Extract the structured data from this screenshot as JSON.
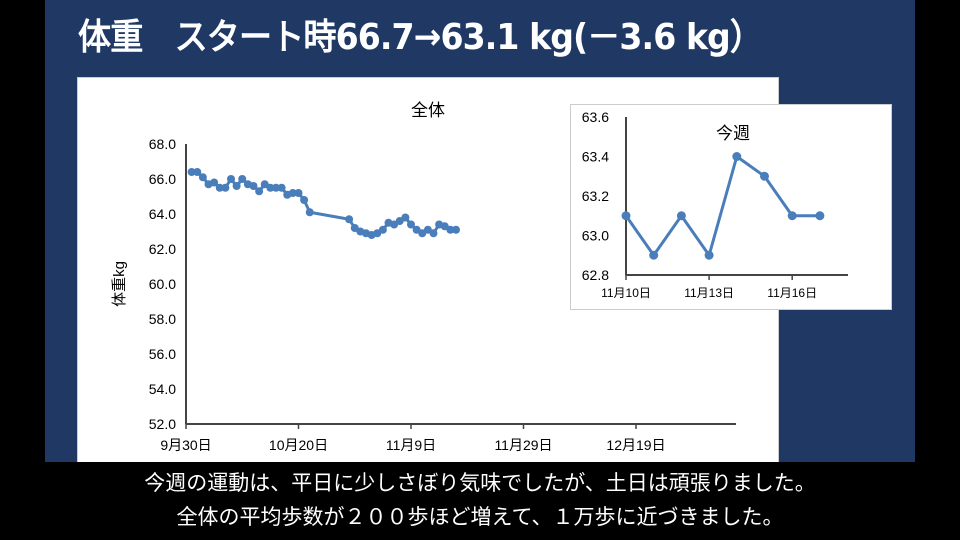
{
  "title": "体重　スタート時66.7→63.1 kg(－3.6 kg）",
  "colors": {
    "background": "#1f3864",
    "series": "#4a7ebb"
  },
  "caption": {
    "line1": "今週の運動は、平日に少しさぼり気味でしたが、土日は頑張りました。",
    "line2": "全体の平均歩数が２００歩ほど増えて、１万歩に近づきました。"
  },
  "chart_data": [
    {
      "type": "line",
      "title": "全体",
      "ylabel": "体重kg",
      "ylim": [
        52,
        68
      ],
      "yticks": [
        "52.0",
        "54.0",
        "56.0",
        "58.0",
        "60.0",
        "62.0",
        "64.0",
        "66.0",
        "68.0"
      ],
      "xlim": [
        "9月30日",
        "1月5日"
      ],
      "xticks": [
        "9月30日",
        "10月20日",
        "11月9日",
        "11月29日",
        "12月19日"
      ],
      "grid": false,
      "markers": true,
      "x": [
        "10月1日",
        "10月2日",
        "10月3日",
        "10月4日",
        "10月5日",
        "10月6日",
        "10月7日",
        "10月8日",
        "10月9日",
        "10月10日",
        "10月11日",
        "10月12日",
        "10月13日",
        "10月14日",
        "10月15日",
        "10月16日",
        "10月17日",
        "10月18日",
        "10月19日",
        "10月20日",
        "10月21日",
        "10月22日",
        "10月29日",
        "10月30日",
        "10月31日",
        "11月1日",
        "11月2日",
        "11月3日",
        "11月4日",
        "11月5日",
        "11月6日",
        "11月7日",
        "11月8日",
        "11月9日",
        "11月10日",
        "11月11日",
        "11月12日",
        "11月13日",
        "11月14日",
        "11月15日",
        "11月16日",
        "11月17日"
      ],
      "values": [
        66.4,
        66.4,
        66.1,
        65.7,
        65.8,
        65.5,
        65.5,
        66.0,
        65.6,
        66.0,
        65.7,
        65.6,
        65.3,
        65.7,
        65.5,
        65.5,
        65.5,
        65.1,
        65.2,
        65.2,
        64.8,
        64.1,
        63.7,
        63.2,
        63.0,
        62.9,
        62.8,
        62.9,
        63.1,
        63.5,
        63.4,
        63.6,
        63.8,
        63.4,
        63.1,
        62.9,
        63.1,
        62.9,
        63.4,
        63.3,
        63.1,
        63.1
      ]
    },
    {
      "type": "line",
      "title": "今週",
      "ylim": [
        62.8,
        63.6
      ],
      "yticks": [
        "62.8",
        "63.0",
        "63.2",
        "63.4",
        "63.6"
      ],
      "xticks": [
        "11月10日",
        "11月13日",
        "11月16日"
      ],
      "grid": false,
      "markers": true,
      "x": [
        "11月10日",
        "11月11日",
        "11月12日",
        "11月13日",
        "11月14日",
        "11月15日",
        "11月16日",
        "11月17日"
      ],
      "values": [
        63.1,
        62.9,
        63.1,
        62.9,
        63.4,
        63.3,
        63.1,
        63.1
      ]
    }
  ]
}
